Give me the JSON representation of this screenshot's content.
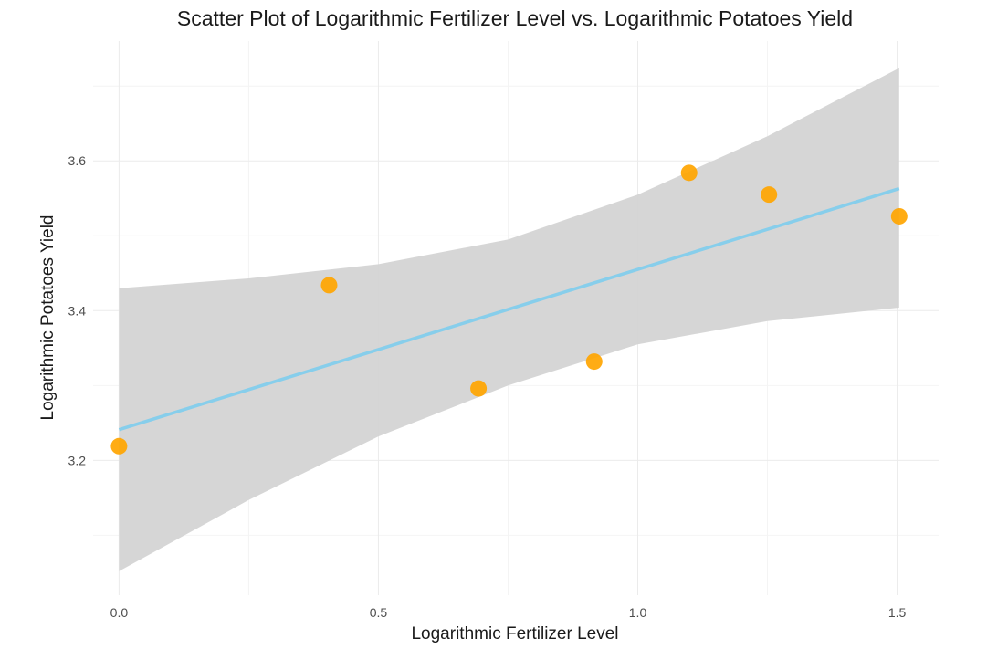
{
  "chart_data": {
    "type": "scatter",
    "title": "Scatter Plot of Logarithmic Fertilizer Level vs. Logarithmic Potatoes Yield",
    "xlabel": "Logarithmic Fertilizer Level",
    "ylabel": "Logarithmic Potatoes Yield",
    "xlim": [
      -0.05,
      1.58
    ],
    "ylim": [
      3.02,
      3.76
    ],
    "x_ticks": [
      0.0,
      0.5,
      1.0,
      1.5
    ],
    "x_tick_labels": [
      "0.0",
      "0.5",
      "1.0",
      "1.5"
    ],
    "y_ticks": [
      3.2,
      3.4,
      3.6
    ],
    "y_tick_labels": [
      "3.2",
      "3.4",
      "3.6"
    ],
    "x_minor_ticks": [
      0.25,
      0.75,
      1.25
    ],
    "y_minor_ticks": [
      3.1,
      3.3,
      3.5,
      3.7
    ],
    "grid": true,
    "legend": "none",
    "series": [
      {
        "points": [
          {
            "x": 0.0,
            "y": 3.219
          },
          {
            "x": 0.405,
            "y": 3.434
          },
          {
            "x": 0.693,
            "y": 3.296
          },
          {
            "x": 0.916,
            "y": 3.332
          },
          {
            "x": 1.099,
            "y": 3.584
          },
          {
            "x": 1.253,
            "y": 3.555
          },
          {
            "x": 1.504,
            "y": 3.526
          }
        ],
        "color": "#FFA500"
      }
    ],
    "trend_line": {
      "type": "linear",
      "x": [
        0.0,
        1.504
      ],
      "y": [
        3.241,
        3.563
      ],
      "color": "#87CEEB"
    },
    "confidence_band": {
      "color": "#D4D4D4",
      "x": [
        0.0,
        0.25,
        0.5,
        0.75,
        1.0,
        1.25,
        1.504
      ],
      "lower": [
        3.052,
        3.147,
        3.232,
        3.3,
        3.355,
        3.386,
        3.404
      ],
      "upper": [
        3.43,
        3.443,
        3.462,
        3.495,
        3.555,
        3.633,
        3.724
      ]
    }
  }
}
